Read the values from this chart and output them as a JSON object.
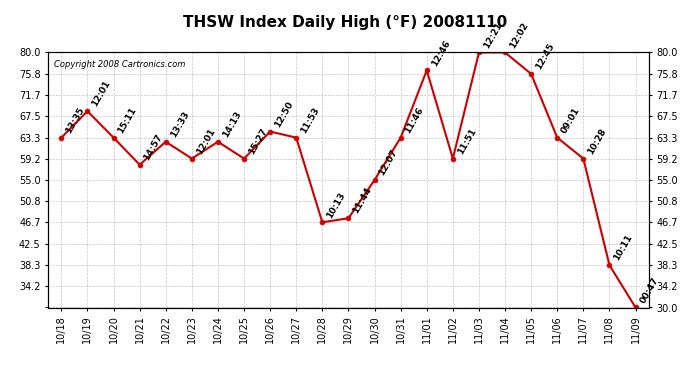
{
  "title": "THSW Index Daily High (°F) 20081110",
  "copyright": "Copyright 2008 Cartronics.com",
  "x_labels": [
    "10/18",
    "10/19",
    "10/20",
    "10/21",
    "10/22",
    "10/23",
    "10/24",
    "10/25",
    "10/26",
    "10/27",
    "10/28",
    "10/29",
    "10/30",
    "10/31",
    "11/01",
    "11/02",
    "11/03",
    "11/04",
    "11/05",
    "11/06",
    "11/07",
    "11/08",
    "11/09"
  ],
  "y_values": [
    63.3,
    68.5,
    63.3,
    58.0,
    62.5,
    59.2,
    62.5,
    59.2,
    64.5,
    63.3,
    46.7,
    47.5,
    55.0,
    63.3,
    76.5,
    59.2,
    80.0,
    80.0,
    75.8,
    63.3,
    59.2,
    38.3,
    30.0
  ],
  "time_labels": [
    "13:35",
    "12:01",
    "15:11",
    "14:57",
    "13:33",
    "12:01",
    "14:13",
    "15:27",
    "12:50",
    "11:53",
    "10:13",
    "11:44",
    "12:07",
    "11:46",
    "12:46",
    "11:51",
    "12:21",
    "12:02",
    "12:45",
    "09:01",
    "10:28",
    "10:11",
    "00:47"
  ],
  "ylim_min": 30.0,
  "ylim_max": 80.0,
  "yticks": [
    30.0,
    34.2,
    38.3,
    42.5,
    46.7,
    50.8,
    55.0,
    59.2,
    63.3,
    67.5,
    71.7,
    75.8,
    80.0
  ],
  "line_color": "#cc0000",
  "marker_color": "#cc0000",
  "bg_color": "#ffffff",
  "grid_color": "#aaaaaa",
  "title_fontsize": 11,
  "label_fontsize": 6.5,
  "tick_fontsize": 7.0
}
